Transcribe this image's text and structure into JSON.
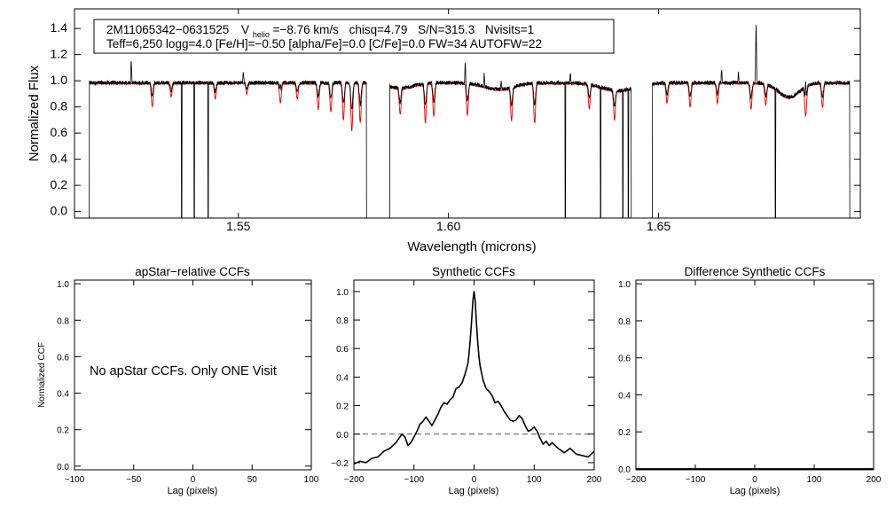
{
  "chart_data": [
    {
      "id": "spectrum",
      "type": "line",
      "xlabel": "Wavelength (microns)",
      "ylabel": "Normalized Flux",
      "xlim": [
        1.511,
        1.698
      ],
      "ylim": [
        -0.05,
        1.55
      ],
      "xticks": [
        1.55,
        1.6,
        1.65
      ],
      "xtick_labels": [
        "1.55",
        "1.60",
        "1.65"
      ],
      "yticks": [
        0.0,
        0.2,
        0.4,
        0.6,
        0.8,
        1.0,
        1.2,
        1.4
      ],
      "ytick_labels": [
        "0.0",
        "0.2",
        "0.4",
        "0.6",
        "0.8",
        "1.0",
        "1.2",
        "1.4"
      ],
      "annotation": {
        "star_id": "2M11065342−0631525",
        "v_prefix": "V",
        "v_sub": "helio",
        "v_value": "=−8.76 km/s",
        "chisq": "chisq=4.79",
        "snr": "S/N=315.3",
        "nvisits": "Nvisits=1",
        "line2": "Teff=6,250 logg=4.0 [Fe/H]=−0.50 [alpha/Fe]=0.0 [C/Fe]=0.0 FW=34 AUTOFW=22"
      },
      "chips": [
        [
          1.5145,
          1.5805
        ],
        [
          1.586,
          1.6435
        ],
        [
          1.6485,
          1.6955
        ]
      ],
      "continuum": 0.98,
      "series": [
        {
          "name": "observed",
          "color": "#000000"
        },
        {
          "name": "model",
          "color": "#dd0000"
        }
      ],
      "bad_pixels": [
        1.5365,
        1.5395,
        1.5428,
        1.6278,
        1.6362,
        1.6415,
        1.6428,
        1.6778
      ],
      "absorption_lines": [
        [
          1.5295,
          0.18
        ],
        [
          1.534,
          0.1
        ],
        [
          1.5445,
          0.12
        ],
        [
          1.552,
          0.08
        ],
        [
          1.56,
          0.15
        ],
        [
          1.564,
          0.12
        ],
        [
          1.569,
          0.2
        ],
        [
          1.572,
          0.22
        ],
        [
          1.575,
          0.28
        ],
        [
          1.577,
          0.36
        ],
        [
          1.579,
          0.3
        ],
        [
          1.5885,
          0.2
        ],
        [
          1.5945,
          0.3
        ],
        [
          1.5965,
          0.25
        ],
        [
          1.6045,
          0.24
        ],
        [
          1.615,
          0.25
        ],
        [
          1.6205,
          0.3
        ],
        [
          1.6335,
          0.18
        ],
        [
          1.6395,
          0.22
        ],
        [
          1.652,
          0.15
        ],
        [
          1.6575,
          0.18
        ],
        [
          1.664,
          0.15
        ],
        [
          1.672,
          0.2
        ],
        [
          1.6755,
          0.16
        ],
        [
          1.685,
          0.22
        ],
        [
          1.689,
          0.18
        ]
      ],
      "emission_spikes": [
        [
          1.5245,
          0.17
        ],
        [
          1.5512,
          0.08
        ],
        [
          1.56,
          0.07
        ],
        [
          1.583,
          0.06
        ],
        [
          1.604,
          0.16
        ],
        [
          1.6085,
          0.1
        ],
        [
          1.6125,
          0.06
        ],
        [
          1.629,
          0.07
        ],
        [
          1.6445,
          0.05
        ],
        [
          1.665,
          0.1
        ],
        [
          1.669,
          0.07
        ],
        [
          1.6732,
          0.45
        ],
        [
          1.685,
          0.15
        ]
      ],
      "broad_features": [
        [
          1.5885,
          0.04,
          0.003
        ],
        [
          1.612,
          0.05,
          0.0035
        ],
        [
          1.6405,
          0.06,
          0.004
        ],
        [
          1.681,
          0.11,
          0.0025
        ]
      ]
    },
    {
      "id": "apstar_ccf",
      "type": "line",
      "title": "apStar−relative CCFs",
      "xlabel": "Lag (pixels)",
      "ylabel": "Normalized CCF",
      "xlim": [
        -100,
        100
      ],
      "ylim": [
        -0.02,
        1.02
      ],
      "xticks": [
        -100,
        -50,
        0,
        50,
        100
      ],
      "xtick_labels": [
        "−100",
        "−50",
        "0",
        "50",
        "100"
      ],
      "yticks": [
        0.0,
        0.2,
        0.4,
        0.6,
        0.8,
        1.0
      ],
      "ytick_labels": [
        "0.0",
        "0.2",
        "0.4",
        "0.6",
        "0.8",
        "1.0"
      ],
      "message": "No apStar CCFs.  Only ONE Visit"
    },
    {
      "id": "synthetic_ccf",
      "type": "line",
      "title": "Synthetic CCFs",
      "xlabel": "Lag (pixels)",
      "xlim": [
        -200,
        200
      ],
      "ylim": [
        -0.25,
        1.08
      ],
      "xticks": [
        -200,
        -100,
        0,
        100,
        200
      ],
      "xtick_labels": [
        "−200",
        "−100",
        "0",
        "100",
        "200"
      ],
      "yticks": [
        -0.2,
        0.0,
        0.2,
        0.4,
        0.6,
        0.8,
        1.0
      ],
      "ytick_labels": [
        "−0.2",
        "0.0",
        "0.2",
        "0.4",
        "0.6",
        "0.8",
        "1.0"
      ],
      "reference_line": 0.0,
      "x": [
        -200,
        -190,
        -180,
        -170,
        -160,
        -150,
        -140,
        -130,
        -125,
        -120,
        -115,
        -110,
        -105,
        -100,
        -95,
        -90,
        -85,
        -80,
        -75,
        -70,
        -65,
        -60,
        -55,
        -50,
        -45,
        -40,
        -35,
        -30,
        -25,
        -20,
        -15,
        -10,
        -8,
        -6,
        -4,
        -2,
        0,
        2,
        4,
        6,
        8,
        10,
        15,
        20,
        25,
        30,
        35,
        40,
        45,
        50,
        55,
        60,
        65,
        70,
        75,
        80,
        85,
        90,
        95,
        100,
        105,
        110,
        115,
        120,
        125,
        130,
        140,
        150,
        160,
        170,
        180,
        190,
        200
      ],
      "y": [
        -0.21,
        -0.19,
        -0.2,
        -0.17,
        -0.16,
        -0.12,
        -0.1,
        -0.06,
        -0.03,
        0.0,
        -0.02,
        -0.08,
        -0.06,
        -0.02,
        0.02,
        0.07,
        0.09,
        0.12,
        0.09,
        0.06,
        0.1,
        0.14,
        0.19,
        0.22,
        0.21,
        0.24,
        0.26,
        0.32,
        0.33,
        0.36,
        0.42,
        0.5,
        0.58,
        0.68,
        0.8,
        0.93,
        1.0,
        0.93,
        0.78,
        0.65,
        0.55,
        0.48,
        0.38,
        0.32,
        0.3,
        0.27,
        0.22,
        0.23,
        0.2,
        0.16,
        0.13,
        0.1,
        0.09,
        0.1,
        0.13,
        0.11,
        0.06,
        0.02,
        0.03,
        0.05,
        0.02,
        -0.03,
        -0.07,
        -0.05,
        -0.08,
        -0.06,
        -0.1,
        -0.13,
        -0.1,
        -0.14,
        -0.15,
        -0.16,
        -0.12
      ]
    },
    {
      "id": "diff_ccf",
      "type": "line",
      "title": "Difference Synthetic CCFs",
      "xlabel": "Lag (pixels)",
      "xlim": [
        -200,
        200
      ],
      "ylim": [
        -0.005,
        1.02
      ],
      "xticks": [
        -200,
        -100,
        0,
        100,
        200
      ],
      "xtick_labels": [
        "−200",
        "−100",
        "0",
        "100",
        "200"
      ],
      "yticks": [
        0.0,
        0.2,
        0.4,
        0.6,
        0.8,
        1.0
      ],
      "ytick_labels": [
        "0.0",
        "0.2",
        "0.4",
        "0.6",
        "0.8",
        "1.0"
      ],
      "flat_value": 0.0
    }
  ]
}
